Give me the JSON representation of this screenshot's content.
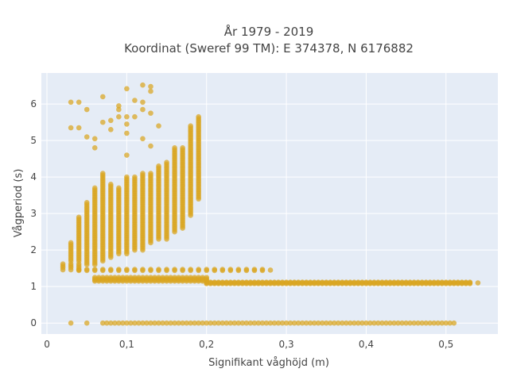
{
  "chart_data": {
    "type": "scatter",
    "title_line1": "År 1979 - 2019",
    "title_line2": "Koordinat (Sweref 99 TM): E 374378, N 6176882",
    "xlabel": "Signifikant våghöjd (m)",
    "ylabel": "Vågperiod (s)",
    "xlim": [
      -0.007,
      0.565
    ],
    "ylim": [
      -0.3,
      6.85
    ],
    "x_ticks": [
      0,
      0.1,
      0.2,
      0.3,
      0.4,
      0.5
    ],
    "x_tick_labels": [
      "0",
      "0,1",
      "0,2",
      "0,3",
      "0,4",
      "0,5"
    ],
    "y_ticks": [
      0,
      1,
      2,
      3,
      4,
      5,
      6
    ],
    "y_tick_labels": [
      "0",
      "1",
      "2",
      "3",
      "4",
      "5",
      "6"
    ],
    "grid": true,
    "colors": {
      "marker": "#daa520",
      "plot_bg": "#e5ecf6",
      "grid": "#ffffff"
    },
    "clusters": [
      {
        "name": "calm",
        "x_start": 0.07,
        "x_end": 0.51,
        "x_step": 0.005,
        "y": [
          0
        ]
      },
      {
        "name": "calm-sparse",
        "x": [
          0.03,
          0.05
        ],
        "y": [
          0
        ]
      },
      {
        "name": "band-1.1",
        "x_start": 0.2,
        "x_end": 0.53,
        "x_step": 0.005,
        "y": [
          1.08,
          1.1,
          1.12
        ]
      },
      {
        "name": "band-1.2",
        "x_start": 0.06,
        "x_end": 0.2,
        "x_step": 0.005,
        "y": [
          1.15,
          1.18,
          1.21,
          1.25
        ]
      },
      {
        "name": "band-1.45",
        "x_start": 0.04,
        "x_end": 0.27,
        "x_step": 0.01,
        "y": [
          1.44,
          1.47
        ]
      },
      {
        "name": "band-1.5",
        "x_start": 0.02,
        "x_end": 0.04,
        "x_step": 0.01,
        "y": [
          1.46,
          1.52,
          1.57,
          1.62
        ]
      },
      {
        "name": "isolated",
        "x": [
          0.28,
          0.54
        ],
        "y": [
          1.45,
          1.1
        ]
      }
    ],
    "columns": [
      {
        "x": 0.03,
        "y_min": 1.7,
        "y_max": 2.2
      },
      {
        "x": 0.04,
        "y_min": 1.7,
        "y_max": 2.9
      },
      {
        "x": 0.05,
        "y_min": 1.6,
        "y_max": 3.3
      },
      {
        "x": 0.06,
        "y_min": 1.6,
        "y_max": 3.7
      },
      {
        "x": 0.07,
        "y_min": 1.7,
        "y_max": 4.1
      },
      {
        "x": 0.08,
        "y_min": 1.8,
        "y_max": 3.8
      },
      {
        "x": 0.09,
        "y_min": 1.9,
        "y_max": 3.7
      },
      {
        "x": 0.1,
        "y_min": 1.9,
        "y_max": 4.0
      },
      {
        "x": 0.11,
        "y_min": 2.0,
        "y_max": 4.0
      },
      {
        "x": 0.12,
        "y_min": 2.0,
        "y_max": 4.1
      },
      {
        "x": 0.13,
        "y_min": 2.2,
        "y_max": 4.1
      },
      {
        "x": 0.14,
        "y_min": 2.3,
        "y_max": 4.3
      },
      {
        "x": 0.15,
        "y_min": 2.3,
        "y_max": 4.4
      },
      {
        "x": 0.16,
        "y_min": 2.5,
        "y_max": 4.8
      },
      {
        "x": 0.17,
        "y_min": 2.6,
        "y_max": 4.8
      },
      {
        "x": 0.18,
        "y_min": 2.95,
        "y_max": 5.4
      },
      {
        "x": 0.19,
        "y_min": 3.4,
        "y_max": 5.65
      }
    ],
    "outliers": [
      [
        0.03,
        6.05
      ],
      [
        0.04,
        6.05
      ],
      [
        0.05,
        5.85
      ],
      [
        0.07,
        6.2
      ],
      [
        0.09,
        5.95
      ],
      [
        0.09,
        5.85
      ],
      [
        0.1,
        6.42
      ],
      [
        0.11,
        6.1
      ],
      [
        0.12,
        6.52
      ],
      [
        0.12,
        6.05
      ],
      [
        0.13,
        6.48
      ],
      [
        0.13,
        6.35
      ],
      [
        0.03,
        5.35
      ],
      [
        0.04,
        5.35
      ],
      [
        0.05,
        5.1
      ],
      [
        0.06,
        5.05
      ],
      [
        0.07,
        5.5
      ],
      [
        0.08,
        5.55
      ],
      [
        0.08,
        5.3
      ],
      [
        0.09,
        5.65
      ],
      [
        0.1,
        5.65
      ],
      [
        0.1,
        5.45
      ],
      [
        0.1,
        5.2
      ],
      [
        0.11,
        5.65
      ],
      [
        0.12,
        5.85
      ],
      [
        0.12,
        5.05
      ],
      [
        0.13,
        5.75
      ],
      [
        0.13,
        4.85
      ],
      [
        0.14,
        5.4
      ],
      [
        0.06,
        4.8
      ],
      [
        0.1,
        4.6
      ]
    ]
  }
}
